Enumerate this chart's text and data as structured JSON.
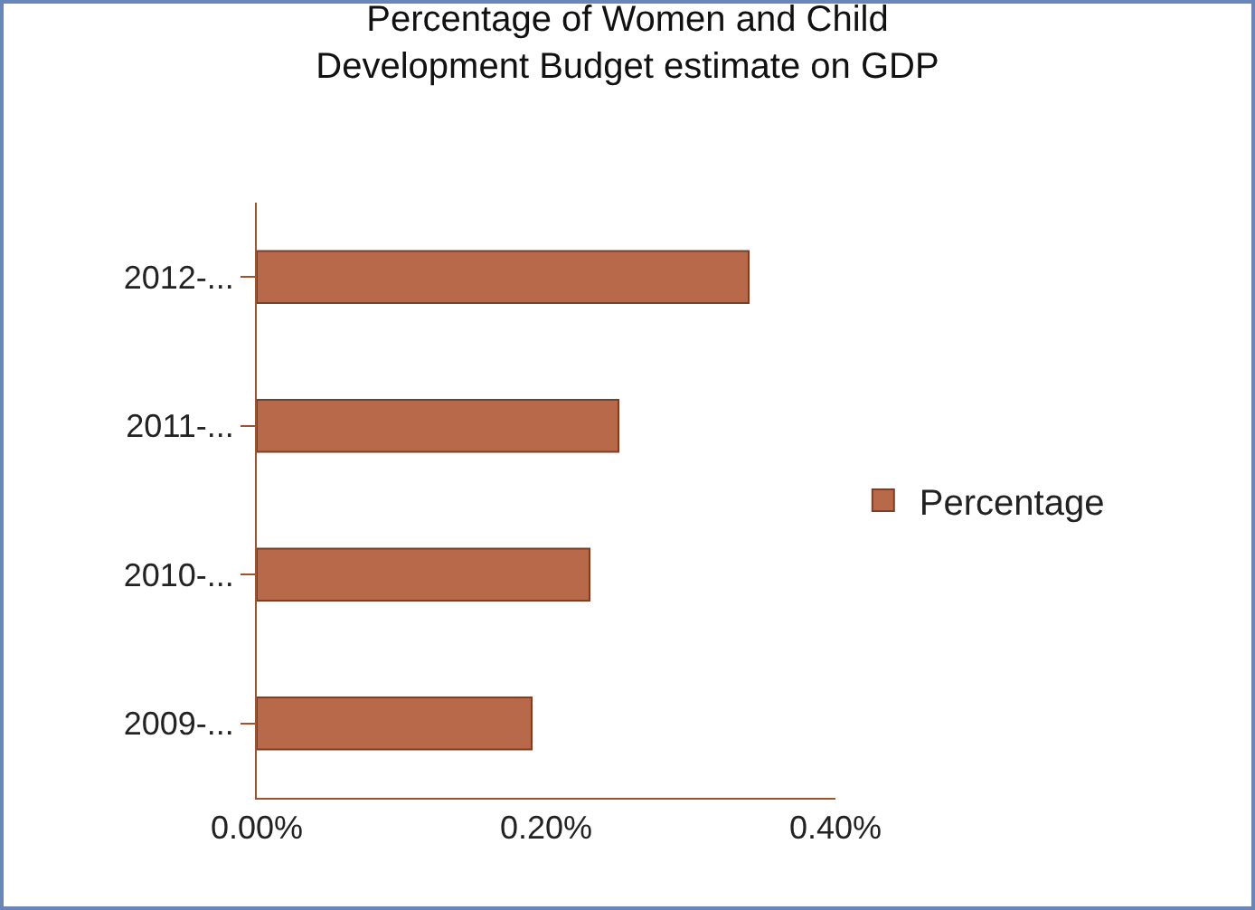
{
  "chart_data": {
    "type": "bar",
    "orientation": "horizontal",
    "title": "Percentage of Women and Child Development Budget estimate on GDP",
    "categories": [
      "2012-...",
      "2011-...",
      "2010-...",
      "2009-..."
    ],
    "series": [
      {
        "name": "Percentage",
        "color": "#b8694a",
        "values": [
          0.34,
          0.25,
          0.23,
          0.19
        ]
      }
    ],
    "xlim": [
      0,
      0.4
    ],
    "xticks": [
      {
        "value": 0,
        "label": "0.00%"
      },
      {
        "value": 0.2,
        "label": "0.20%"
      },
      {
        "value": 0.4,
        "label": "0.40%"
      }
    ],
    "grid": false,
    "legend": "right"
  }
}
